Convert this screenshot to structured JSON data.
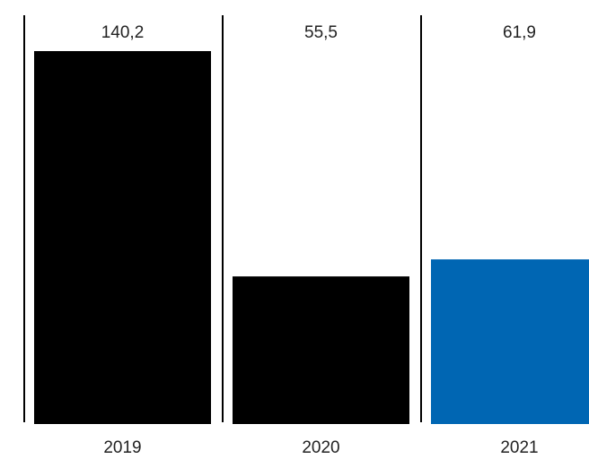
{
  "chart_data": {
    "type": "bar",
    "title": "",
    "xlabel": "",
    "ylabel": "",
    "categories": [
      "2019",
      "2020",
      "2021"
    ],
    "values": [
      140.2,
      55.5,
      61.9
    ],
    "value_labels": [
      "140,2",
      "55,5",
      "61,9"
    ],
    "ylim": [
      0,
      140.2
    ],
    "grid": false,
    "legend": "none",
    "colors": [
      "#000000",
      "#000000",
      "#0066b3"
    ],
    "separator_color": "#000000"
  }
}
